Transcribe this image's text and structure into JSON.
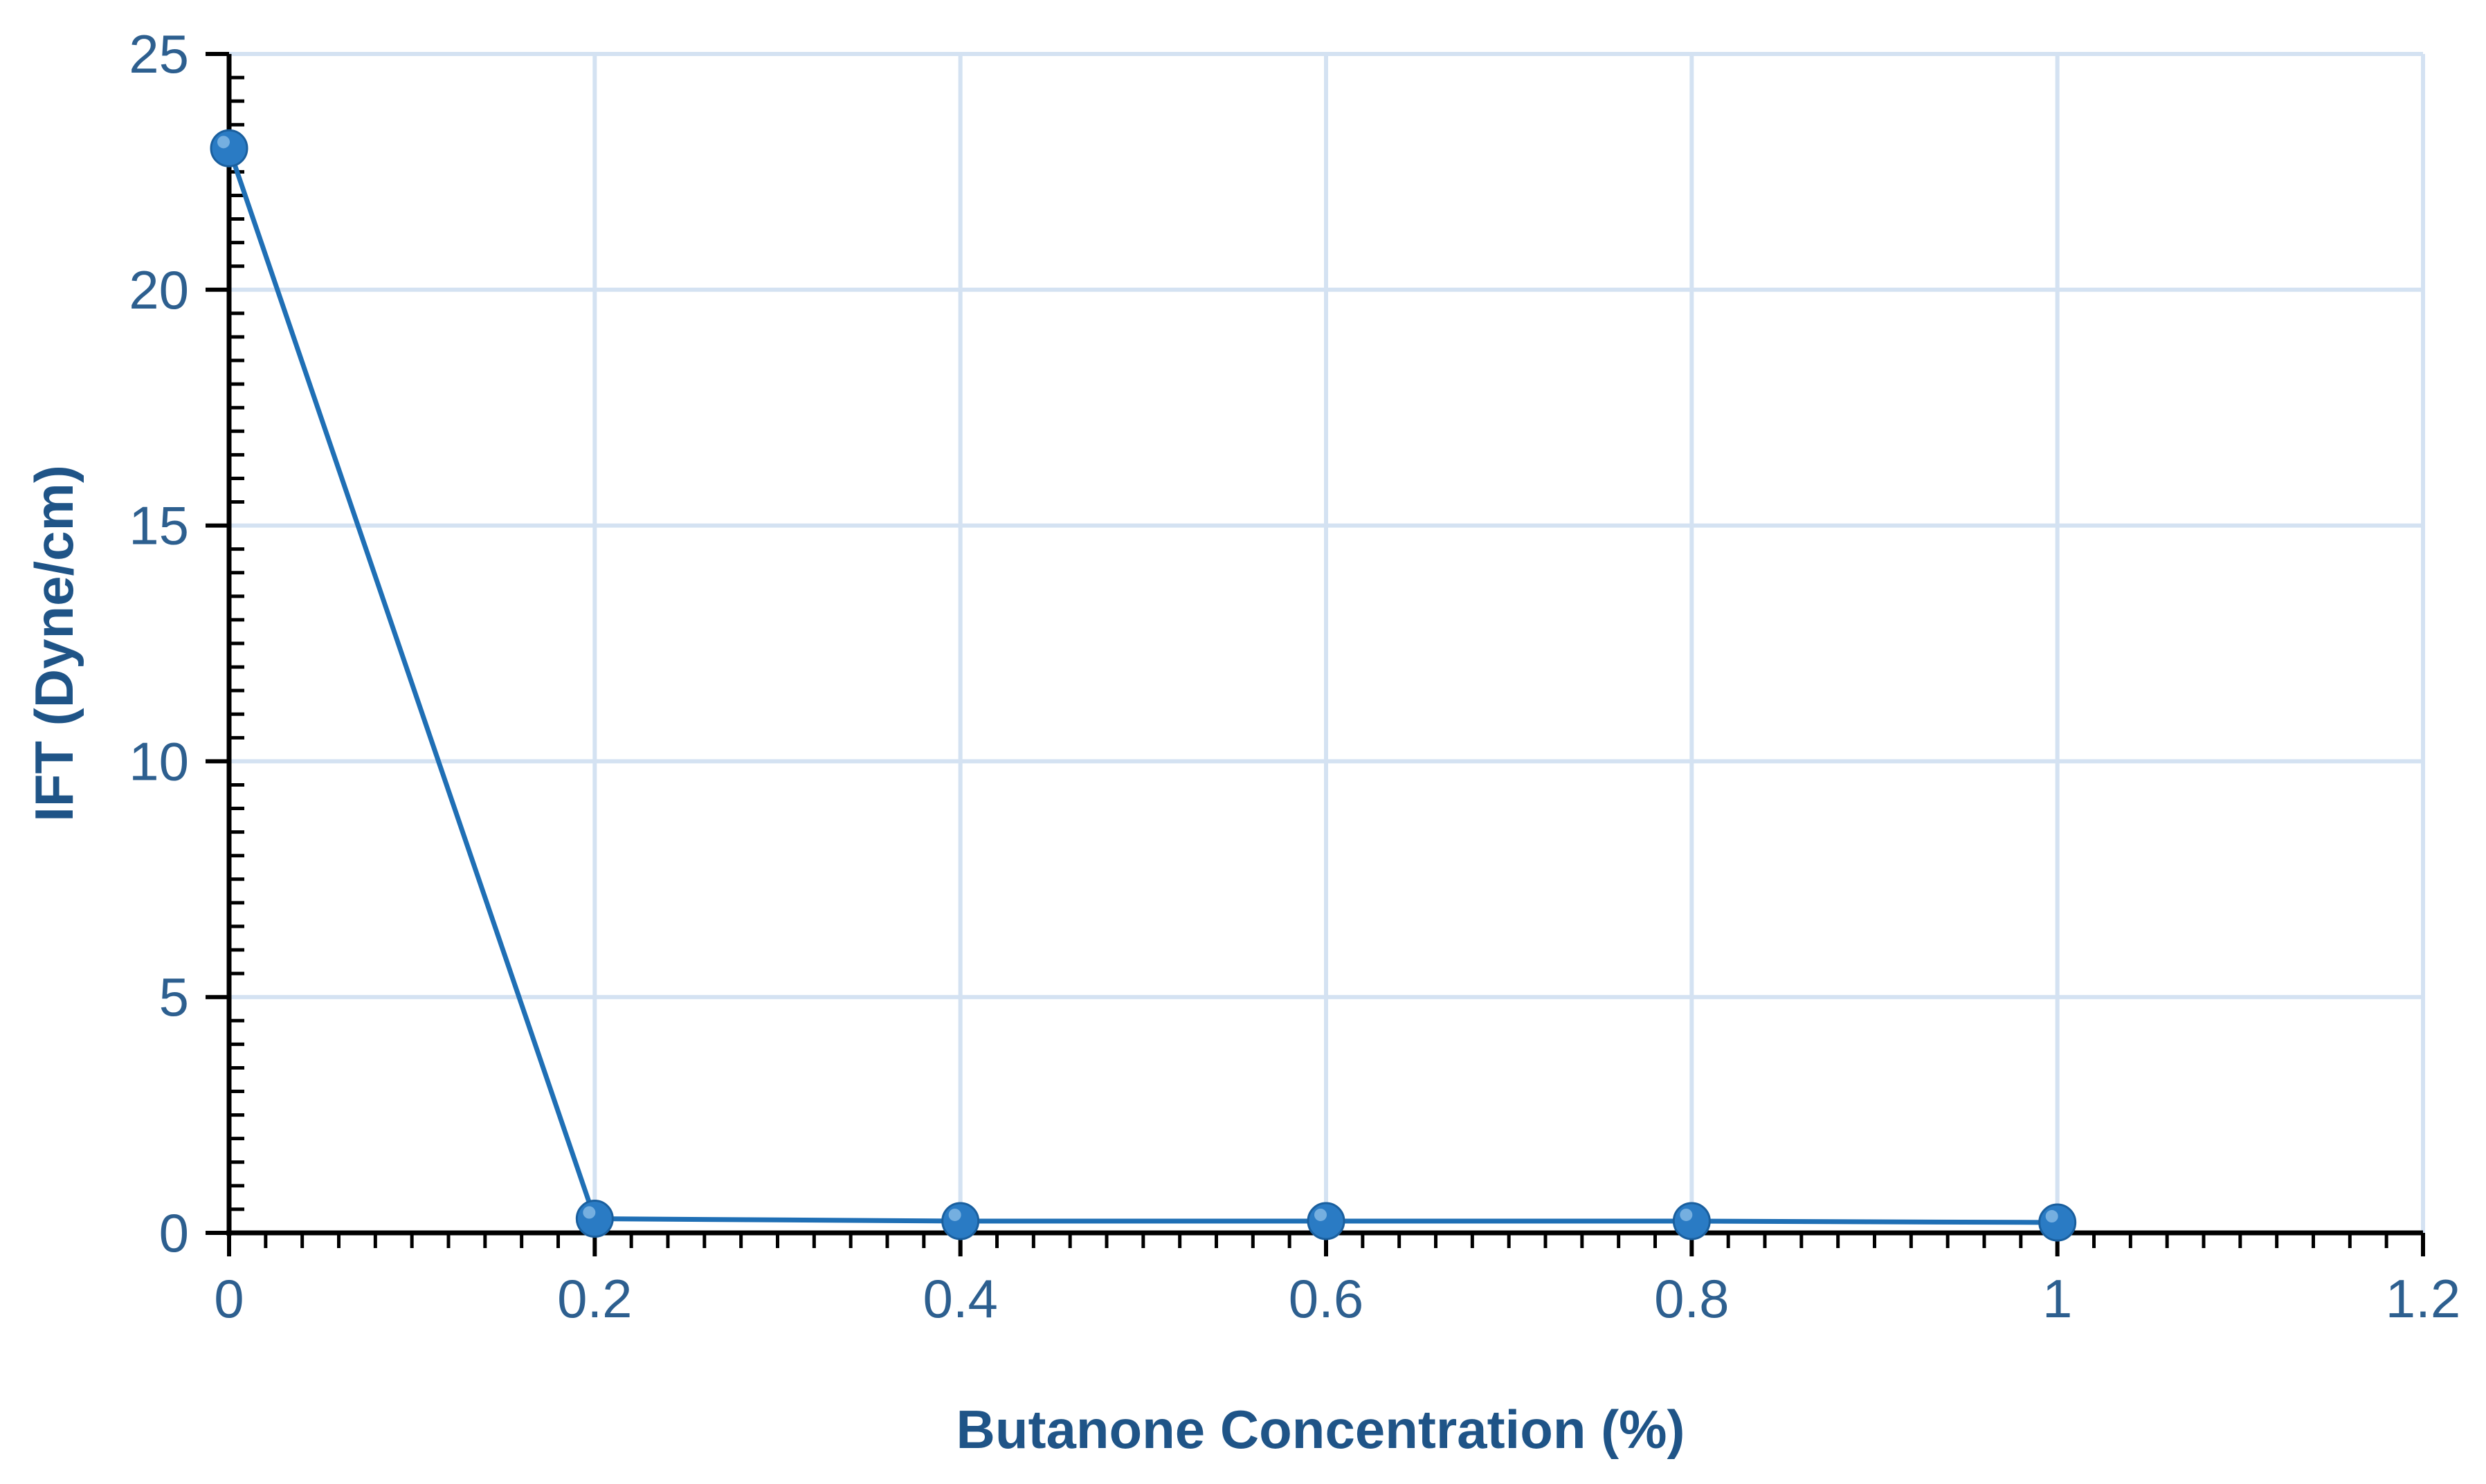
{
  "chart_data": {
    "type": "line",
    "title": "",
    "xlabel": "Butanone Concentration (%)",
    "ylabel": "IFT (Dyne/cm)",
    "xlim": [
      0,
      1.2
    ],
    "ylim": [
      0,
      25
    ],
    "x_ticks": [
      "0",
      "0.2",
      "0.4",
      "0.6",
      "0.8",
      "1",
      "1.2"
    ],
    "y_ticks": [
      "0",
      "5",
      "10",
      "15",
      "20",
      "25"
    ],
    "x_tick_values": [
      0,
      0.2,
      0.4,
      0.6,
      0.8,
      1.0,
      1.2
    ],
    "y_tick_values": [
      0,
      5,
      10,
      15,
      20,
      25
    ],
    "grid": true,
    "legend": "none",
    "series": [
      {
        "x": [
          0,
          0.2,
          0.4,
          0.6,
          0.8,
          1.0
        ],
        "y": [
          23,
          0.3,
          0.25,
          0.25,
          0.25,
          0.22
        ]
      }
    ],
    "colors": {
      "line": "#1f6fb5",
      "marker": "#2a7bc4",
      "grid": "#d4e2f2",
      "axis": "#000000",
      "tick_text": "#2d5f8f",
      "title_text": "#1f5487"
    }
  }
}
